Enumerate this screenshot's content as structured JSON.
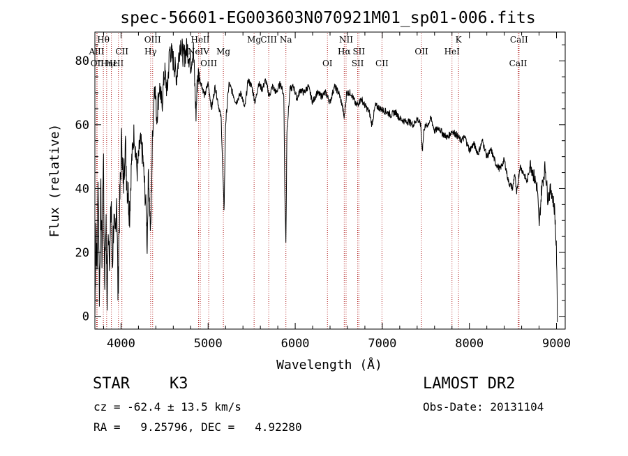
{
  "chart_data": {
    "type": "line",
    "title": "spec-56601-EG003603N070921M01_sp01-006.fits",
    "xlabel": "Wavelength (Å)",
    "ylabel": "Flux (relative)",
    "xlim": [
      3700,
      9100
    ],
    "ylim": [
      -4,
      89
    ],
    "xticks": [
      4000,
      5000,
      6000,
      7000,
      8000,
      9000
    ],
    "yticks": [
      0,
      20,
      40,
      60,
      80
    ],
    "grid": false,
    "line_color": "#000000",
    "marker_color": "#b22222",
    "spectrum_anchors": [
      [
        3700,
        0
      ],
      [
        3712,
        30
      ],
      [
        3725,
        12
      ],
      [
        3738,
        45
      ],
      [
        3752,
        5
      ],
      [
        3768,
        38
      ],
      [
        3782,
        18
      ],
      [
        3796,
        52
      ],
      [
        3812,
        10
      ],
      [
        3826,
        32
      ],
      [
        3840,
        4
      ],
      [
        3856,
        28
      ],
      [
        3872,
        18
      ],
      [
        3888,
        38
      ],
      [
        3900,
        15
      ],
      [
        3915,
        30
      ],
      [
        3932,
        22
      ],
      [
        3950,
        40
      ],
      [
        3965,
        6
      ],
      [
        3980,
        30
      ],
      [
        4000,
        48
      ],
      [
        4010,
        57
      ],
      [
        4025,
        38
      ],
      [
        4045,
        55
      ],
      [
        4070,
        42
      ],
      [
        4101,
        33
      ],
      [
        4120,
        48
      ],
      [
        4150,
        58
      ],
      [
        4185,
        45
      ],
      [
        4220,
        55
      ],
      [
        4250,
        50
      ],
      [
        4290,
        32
      ],
      [
        4300,
        22
      ],
      [
        4315,
        46
      ],
      [
        4340,
        25
      ],
      [
        4360,
        55
      ],
      [
        4385,
        74
      ],
      [
        4410,
        62
      ],
      [
        4440,
        72
      ],
      [
        4470,
        66
      ],
      [
        4500,
        77
      ],
      [
        4530,
        70
      ],
      [
        4560,
        84
      ],
      [
        4600,
        80
      ],
      [
        4640,
        75
      ],
      [
        4680,
        86
      ],
      [
        4720,
        81
      ],
      [
        4760,
        84
      ],
      [
        4800,
        79
      ],
      [
        4830,
        84
      ],
      [
        4861,
        63
      ],
      [
        4880,
        76
      ],
      [
        4920,
        73
      ],
      [
        4960,
        69
      ],
      [
        5000,
        73
      ],
      [
        5040,
        65
      ],
      [
        5080,
        72
      ],
      [
        5120,
        66
      ],
      [
        5150,
        62
      ],
      [
        5170,
        44
      ],
      [
        5183,
        33
      ],
      [
        5200,
        60
      ],
      [
        5240,
        73
      ],
      [
        5280,
        70
      ],
      [
        5320,
        67
      ],
      [
        5380,
        70
      ],
      [
        5420,
        65
      ],
      [
        5460,
        74
      ],
      [
        5500,
        72
      ],
      [
        5540,
        67
      ],
      [
        5580,
        73
      ],
      [
        5620,
        71
      ],
      [
        5660,
        74
      ],
      [
        5700,
        69
      ],
      [
        5740,
        72
      ],
      [
        5780,
        70
      ],
      [
        5830,
        73
      ],
      [
        5870,
        69
      ],
      [
        5880,
        40
      ],
      [
        5893,
        23
      ],
      [
        5905,
        58
      ],
      [
        5940,
        71
      ],
      [
        5980,
        72
      ],
      [
        6020,
        68
      ],
      [
        6060,
        71
      ],
      [
        6100,
        70
      ],
      [
        6150,
        72
      ],
      [
        6200,
        67
      ],
      [
        6250,
        70
      ],
      [
        6300,
        69
      ],
      [
        6350,
        70
      ],
      [
        6400,
        67
      ],
      [
        6450,
        72
      ],
      [
        6500,
        70
      ],
      [
        6540,
        66
      ],
      [
        6563,
        62
      ],
      [
        6590,
        70
      ],
      [
        6640,
        70
      ],
      [
        6700,
        66
      ],
      [
        6760,
        68
      ],
      [
        6800,
        66
      ],
      [
        6850,
        64
      ],
      [
        6880,
        60
      ],
      [
        6920,
        66
      ],
      [
        6980,
        65
      ],
      [
        7050,
        64
      ],
      [
        7100,
        63
      ],
      [
        7150,
        64
      ],
      [
        7200,
        62
      ],
      [
        7260,
        61
      ],
      [
        7300,
        61
      ],
      [
        7360,
        60
      ],
      [
        7400,
        62
      ],
      [
        7440,
        60
      ],
      [
        7460,
        52
      ],
      [
        7480,
        59
      ],
      [
        7520,
        60
      ],
      [
        7560,
        62
      ],
      [
        7600,
        58
      ],
      [
        7650,
        59
      ],
      [
        7700,
        57
      ],
      [
        7750,
        56
      ],
      [
        7800,
        58
      ],
      [
        7850,
        57
      ],
      [
        7900,
        55
      ],
      [
        7950,
        56
      ],
      [
        8000,
        52
      ],
      [
        8050,
        54
      ],
      [
        8100,
        51
      ],
      [
        8150,
        55
      ],
      [
        8200,
        50
      ],
      [
        8250,
        52
      ],
      [
        8300,
        48
      ],
      [
        8350,
        46
      ],
      [
        8400,
        49
      ],
      [
        8450,
        42
      ],
      [
        8498,
        40
      ],
      [
        8520,
        45
      ],
      [
        8542,
        38
      ],
      [
        8580,
        47
      ],
      [
        8620,
        45
      ],
      [
        8662,
        42
      ],
      [
        8700,
        48
      ],
      [
        8740,
        44
      ],
      [
        8780,
        40
      ],
      [
        8800,
        28
      ],
      [
        8830,
        40
      ],
      [
        8870,
        47
      ],
      [
        8900,
        37
      ],
      [
        8940,
        40
      ],
      [
        8980,
        33
      ],
      [
        9000,
        20
      ],
      [
        9010,
        0
      ]
    ],
    "line_markers": [
      {
        "label": "AlII",
        "x": 3720,
        "row": 1
      },
      {
        "label": "Hθ",
        "x": 3797,
        "row": 0
      },
      {
        "label": "OII",
        "x": 3727,
        "row": 2
      },
      {
        "label": "Hη",
        "x": 3835,
        "row": 2
      },
      {
        "label": "Hε",
        "x": 3889,
        "row": 2
      },
      {
        "label": "HI",
        "x": 3970,
        "row": 2
      },
      {
        "label": "CII",
        "x": 4010,
        "row": 1
      },
      {
        "label": "OIII",
        "x": 4363,
        "row": 0
      },
      {
        "label": "Hγ",
        "x": 4340,
        "row": 1
      },
      {
        "label": "HeII",
        "x": 4910,
        "row": 0
      },
      {
        "label": "NeIV",
        "x": 4890,
        "row": 1
      },
      {
        "label": "OIII",
        "x": 5007,
        "row": 2
      },
      {
        "label": "Mg",
        "x": 5175,
        "row": 1
      },
      {
        "label": "Mg",
        "x": 5528,
        "row": 0
      },
      {
        "label": "CIII",
        "x": 5696,
        "row": 0
      },
      {
        "label": "Na",
        "x": 5893,
        "row": 0
      },
      {
        "label": "OI",
        "x": 6370,
        "row": 2
      },
      {
        "label": "NII",
        "x": 6584,
        "row": 0
      },
      {
        "label": "Hα",
        "x": 6563,
        "row": 1
      },
      {
        "label": "SII",
        "x": 6731,
        "row": 1
      },
      {
        "label": "SII",
        "x": 6717,
        "row": 2
      },
      {
        "label": "CII",
        "x": 6996,
        "row": 2
      },
      {
        "label": "OII",
        "x": 7450,
        "row": 1
      },
      {
        "label": "K",
        "x": 7875,
        "row": 0
      },
      {
        "label": "HeI",
        "x": 7800,
        "row": 1
      },
      {
        "label": "CaII",
        "x": 8570,
        "row": 0
      },
      {
        "label": "CaII",
        "x": 8560,
        "row": 2
      }
    ]
  },
  "info": {
    "object_class": "STAR",
    "subclass": "K3",
    "survey": "LAMOST DR2",
    "redshift_line": "cz = -62.4 ± 13.5 km/s",
    "obs_date_line": "Obs-Date: 20131104",
    "coords_line": "RA =   9.25796, DEC =   4.92280"
  }
}
